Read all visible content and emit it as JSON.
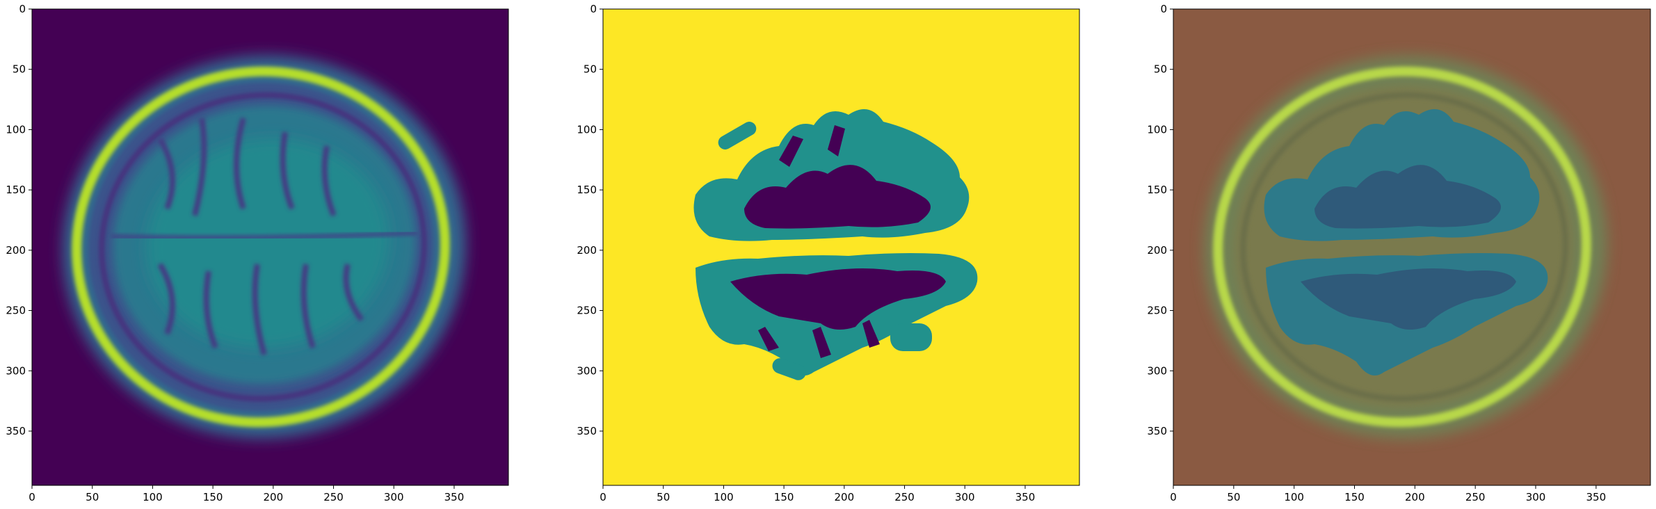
{
  "chart_data": [
    {
      "type": "heatmap",
      "content": "MRI brain slice intensity (viridis colormap)",
      "background_color": "#440154",
      "x_ticks": [
        0,
        50,
        100,
        150,
        200,
        250,
        300,
        350
      ],
      "y_ticks": [
        0,
        50,
        100,
        150,
        200,
        250,
        300,
        350
      ],
      "xlim": [
        0,
        395
      ],
      "ylim": [
        395,
        0
      ]
    },
    {
      "type": "heatmap",
      "content": "Segmentation mask with 3 classes (viridis colormap)",
      "background_color": "#fde725",
      "class_colors": [
        "#440154",
        "#21918c",
        "#fde725"
      ],
      "x_ticks": [
        0,
        50,
        100,
        150,
        200,
        250,
        300,
        350
      ],
      "y_ticks": [
        0,
        50,
        100,
        150,
        200,
        250,
        300,
        350
      ],
      "xlim": [
        0,
        395
      ],
      "ylim": [
        395,
        0
      ]
    },
    {
      "type": "heatmap",
      "content": "MRI slice overlaid with segmentation mask",
      "background_color": "#8a5a42",
      "x_ticks": [
        0,
        50,
        100,
        150,
        200,
        250,
        300,
        350
      ],
      "y_ticks": [
        0,
        50,
        100,
        150,
        200,
        250,
        300,
        350
      ],
      "xlim": [
        0,
        395
      ],
      "ylim": [
        395,
        0
      ]
    }
  ]
}
